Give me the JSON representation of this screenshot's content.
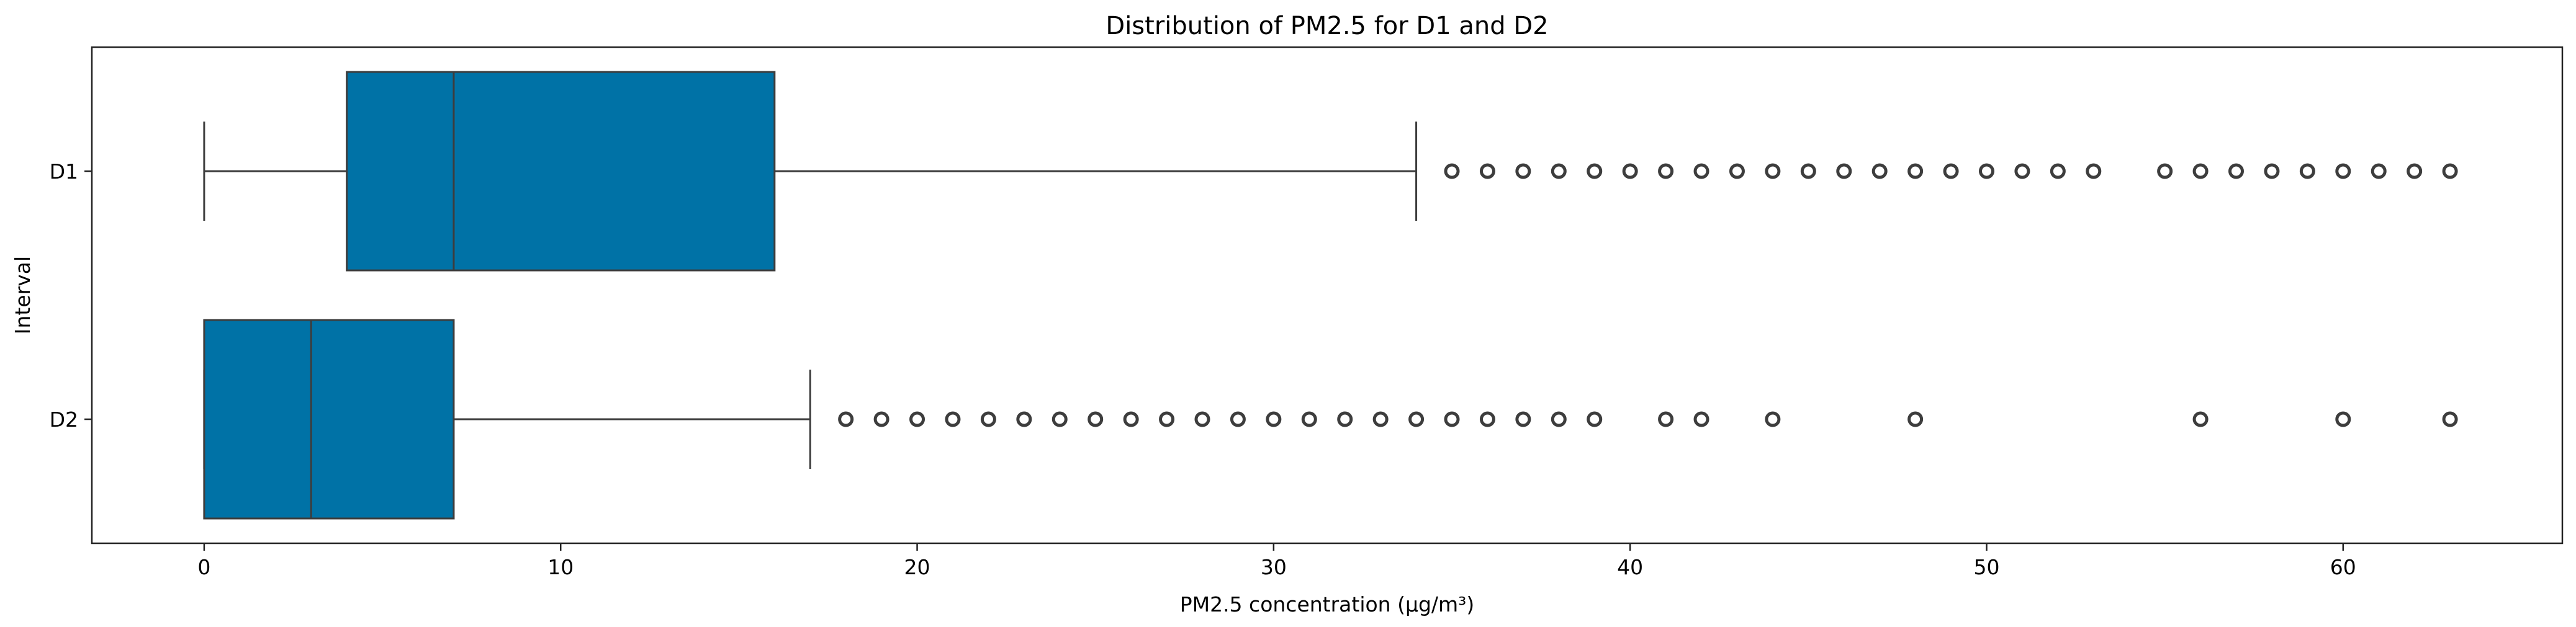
{
  "chart_data": {
    "type": "boxplot",
    "orientation": "horizontal",
    "title": "Distribution of PM2.5 for D1 and D2",
    "xlabel": "PM2.5 concentration (µg/m³)",
    "ylabel": "Interval",
    "xlim": [
      -3.15,
      66.15
    ],
    "xticks": [
      0,
      10,
      20,
      30,
      40,
      50,
      60
    ],
    "grid": false,
    "legend": "none",
    "box_color": "#0072a6",
    "line_color": "#3d3d3d",
    "series": [
      {
        "name": "D1",
        "whisker_low": 0,
        "q1": 4,
        "median": 7,
        "q3": 16,
        "whisker_high": 34,
        "outliers": [
          35,
          36,
          37,
          38,
          39,
          40,
          41,
          42,
          43,
          44,
          45,
          46,
          47,
          48,
          49,
          50,
          51,
          52,
          53,
          55,
          56,
          57,
          58,
          59,
          60,
          61,
          62,
          63
        ]
      },
      {
        "name": "D2",
        "whisker_low": 0,
        "q1": 0,
        "median": 3,
        "q3": 7,
        "whisker_high": 17,
        "outliers": [
          18,
          19,
          20,
          21,
          22,
          23,
          24,
          25,
          26,
          27,
          28,
          29,
          30,
          31,
          32,
          33,
          34,
          35,
          36,
          37,
          38,
          39,
          41,
          42,
          44,
          48,
          56,
          60,
          63
        ]
      }
    ]
  }
}
